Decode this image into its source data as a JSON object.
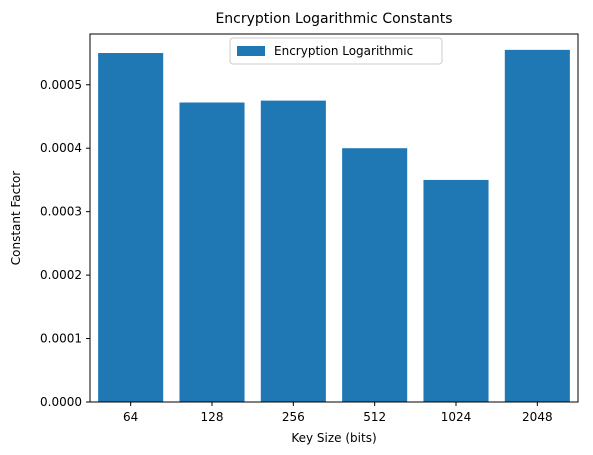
{
  "chart_data": {
    "type": "bar",
    "title": "Encryption Logarithmic Constants",
    "xlabel": "Key Size (bits)",
    "ylabel": "Constant Factor",
    "categories": [
      "64",
      "128",
      "256",
      "512",
      "1024",
      "2048"
    ],
    "series": [
      {
        "name": "Encryption Logarithmic",
        "values": [
          0.00055,
          0.000472,
          0.000475,
          0.0004,
          0.00035,
          0.000555
        ],
        "color": "#1f77b4"
      }
    ],
    "ylim": [
      0,
      0.00058
    ],
    "yticks": [
      "0.0000",
      "0.0001",
      "0.0002",
      "0.0003",
      "0.0004",
      "0.0005"
    ],
    "ytick_values": [
      0,
      0.0001,
      0.0002,
      0.0003,
      0.0004,
      0.0005
    ],
    "grid": false,
    "legend_position": "upper center"
  }
}
